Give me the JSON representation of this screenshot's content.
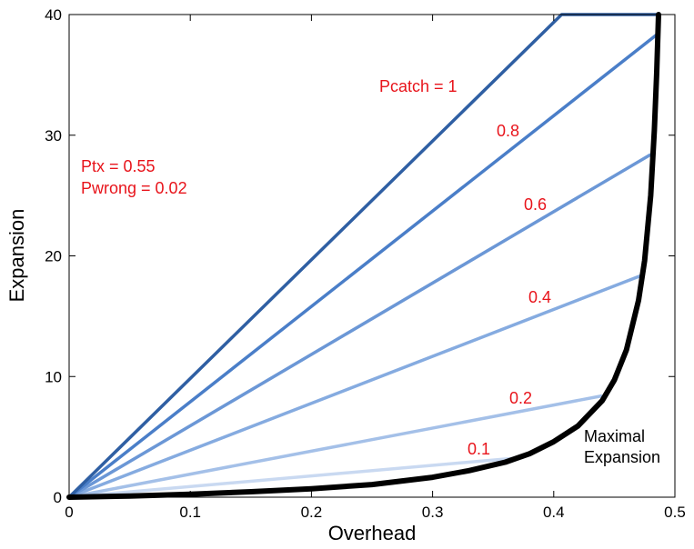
{
  "chart_data": {
    "type": "line",
    "xlabel": "Overhead",
    "ylabel": "Expansion",
    "xlim": [
      0,
      0.5
    ],
    "ylim": [
      0,
      40
    ],
    "xticks": [
      "0",
      "0.1",
      "0.2",
      "0.3",
      "0.4",
      "0.5"
    ],
    "yticks": [
      "0",
      "10",
      "20",
      "30",
      "40"
    ],
    "grid": false,
    "colors": {
      "annotation": "#e8141b",
      "envelope": "#000000",
      "series": [
        "#c9d9f1",
        "#a4c0e8",
        "#85abe0",
        "#6b97d6",
        "#4a7ec8",
        "#2f5fa3"
      ]
    },
    "series": [
      {
        "label": "0.1",
        "x": [
          0,
          0.375
        ],
        "y": [
          0,
          3.3
        ]
      },
      {
        "label": "0.2",
        "x": [
          0,
          0.44
        ],
        "y": [
          0,
          8.4
        ]
      },
      {
        "label": "0.4",
        "x": [
          0,
          0.473
        ],
        "y": [
          0,
          18.4
        ]
      },
      {
        "label": "0.6",
        "x": [
          0,
          0.48
        ],
        "y": [
          0,
          28.4
        ]
      },
      {
        "label": "0.8",
        "x": [
          0,
          0.4845
        ],
        "y": [
          0,
          38.3
        ]
      },
      {
        "label": "Pcatch = 1",
        "x": [
          0,
          0.4065,
          0.4865
        ],
        "y": [
          0,
          40,
          40
        ]
      }
    ],
    "envelope": {
      "label": "Maximal Expansion",
      "x": [
        0,
        0.05,
        0.1,
        0.15,
        0.2,
        0.25,
        0.3,
        0.33,
        0.36,
        0.38,
        0.4,
        0.42,
        0.44,
        0.45,
        0.46,
        0.47,
        0.475,
        0.48,
        0.483,
        0.485,
        0.4865
      ],
      "y": [
        0,
        0.1,
        0.25,
        0.45,
        0.7,
        1.05,
        1.65,
        2.2,
        2.9,
        3.6,
        4.6,
        5.9,
        8.0,
        9.7,
        12.2,
        16.3,
        19.6,
        25.0,
        30.4,
        35.2,
        40.0
      ]
    },
    "annotations": {
      "ptx": "Ptx = 0.55",
      "pwrong": "Pwrong = 0.02",
      "maximal_line1": "Maximal",
      "maximal_line2": "Expansion"
    }
  }
}
